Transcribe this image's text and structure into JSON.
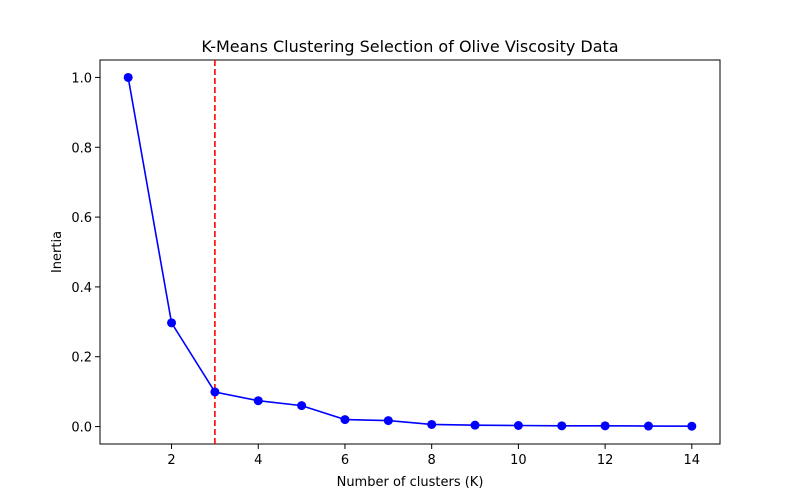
{
  "chart_data": {
    "type": "line",
    "title": "K-Means Clustering Selection of Olive Viscosity Data",
    "xlabel": "Number of clusters (K)",
    "ylabel": "Inertia",
    "xlim": [
      0.35,
      14.65
    ],
    "ylim": [
      -0.05,
      1.05
    ],
    "xticks": [
      2,
      4,
      6,
      8,
      10,
      12,
      14
    ],
    "yticks": [
      0.0,
      0.2,
      0.4,
      0.6,
      0.8,
      1.0
    ],
    "xtick_labels": [
      "2",
      "4",
      "6",
      "8",
      "10",
      "12",
      "14"
    ],
    "ytick_labels": [
      "0.0",
      "0.2",
      "0.4",
      "0.6",
      "0.8",
      "1.0"
    ],
    "grid": false,
    "series": [
      {
        "x": [
          1,
          2,
          3,
          4,
          5,
          6,
          7,
          8,
          9,
          10,
          11,
          12,
          13,
          14
        ],
        "values": [
          1.0,
          0.297,
          0.099,
          0.074,
          0.06,
          0.02,
          0.017,
          0.006,
          0.004,
          0.003,
          0.002,
          0.002,
          0.0015,
          0.001
        ],
        "color": "#0000ff",
        "marker": "circle"
      }
    ],
    "reference_line": {
      "x": 3,
      "color": "#ff0000",
      "style": "dashed"
    }
  }
}
